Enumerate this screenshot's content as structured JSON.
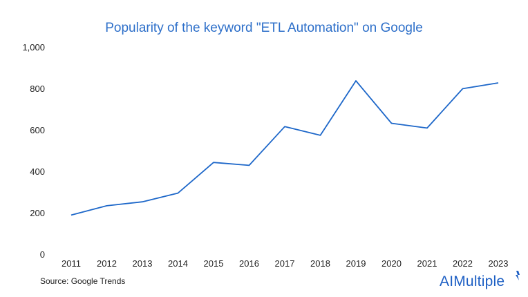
{
  "chart_data": {
    "type": "line",
    "title": "Popularity of the keyword \"ETL Automation\" on Google",
    "xlabel": "",
    "ylabel": "",
    "x": [
      "2011",
      "2012",
      "2013",
      "2014",
      "2015",
      "2016",
      "2017",
      "2018",
      "2019",
      "2020",
      "2021",
      "2022",
      "2023"
    ],
    "series": [
      {
        "values": [
          192,
          237,
          256,
          298,
          446,
          432,
          619,
          577,
          840,
          635,
          612,
          802,
          830
        ]
      }
    ],
    "ylim": [
      0,
      1000
    ],
    "yticks": [
      0,
      200,
      400,
      600,
      800,
      1000
    ],
    "ytick_labels": [
      "0",
      "200",
      "400",
      "600",
      "800",
      "1,000"
    ],
    "grid": false,
    "line_color": "#1d67c9"
  },
  "footer": {
    "source": "Source: Google Trends",
    "brand": "AIMultiple"
  },
  "colors": {
    "title": "#2d6fc9",
    "brand": "#1d5fc4"
  }
}
